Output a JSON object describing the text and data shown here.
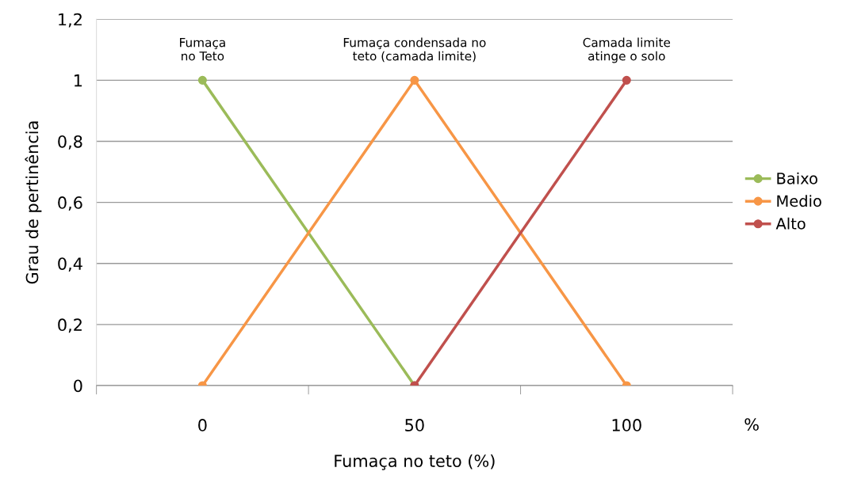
{
  "chart_data": {
    "type": "line",
    "xlabel": "Fumaça no teto (%)",
    "ylabel": "Grau de pertinência",
    "categories": [
      "0",
      "50",
      "100"
    ],
    "series": [
      {
        "name": "Baixo",
        "color": "#9bbb59",
        "values": [
          1,
          0,
          null
        ]
      },
      {
        "name": "Medio",
        "color": "#f79646",
        "values": [
          0,
          1,
          0
        ]
      },
      {
        "name": "Alto",
        "color": "#c0504d",
        "values": [
          null,
          0,
          1
        ]
      }
    ],
    "ylim": [
      0,
      1.2
    ],
    "yticks": [
      0,
      {
        "value": 0.2,
        "label": "0,2"
      },
      {
        "value": 0.4,
        "label": "0,4"
      },
      {
        "value": 0.6,
        "label": "0,6"
      },
      {
        "value": 0.8,
        "label": "0,8"
      },
      1,
      {
        "value": 1.2,
        "label": "1,2"
      }
    ],
    "grid": "y",
    "legend": "right",
    "marker": "circle",
    "line_style": "solid",
    "annotations": [
      "Fumaça\nno Teto",
      "Fumaça condensada no\nteto (camada limite)",
      "Camada limite\natinge o solo",
      "%"
    ]
  }
}
